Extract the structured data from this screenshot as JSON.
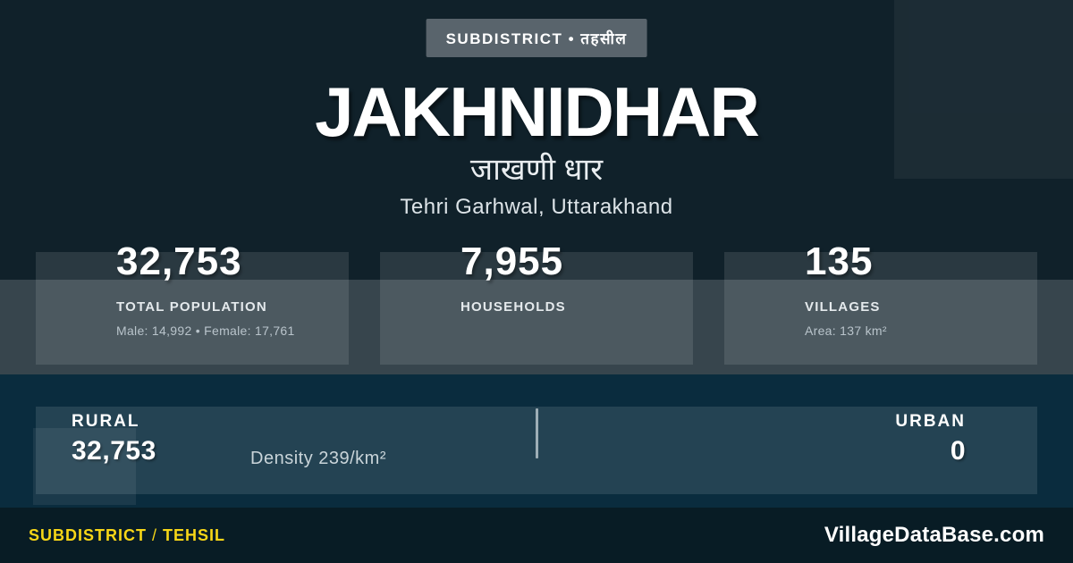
{
  "badge": {
    "label": "SUBDISTRICT • तहसील"
  },
  "title": "JAKHNIDHAR",
  "subtitle_hindi": "जाखणी धार",
  "location": "Tehri Garhwal, Uttarakhand",
  "stats": [
    {
      "value": "32,753",
      "label": "TOTAL POPULATION",
      "detail": "Male: 14,992 • Female: 17,761"
    },
    {
      "value": "7,955",
      "label": "HOUSEHOLDS",
      "detail": ""
    },
    {
      "value": "135",
      "label": "VILLAGES",
      "detail": "Area: 137 km²"
    }
  ],
  "distribution": {
    "rural_label": "RURAL",
    "rural_value": "32,753",
    "density_label": "Density 239/km²",
    "urban_label": "URBAN",
    "urban_value": "0"
  },
  "footer": {
    "type_primary": "SUBDISTRICT",
    "separator": "/",
    "type_secondary": "TEHSIL",
    "brand": "VillageDataBase.com"
  },
  "colors": {
    "background": "#10212a",
    "band_blue": "#0a2c3e",
    "footer_bg": "#081c25",
    "badge_bg": "#59646c",
    "accent_yellow": "#f7d617",
    "text_white": "#ffffff",
    "text_muted": "#b9c4cb"
  }
}
